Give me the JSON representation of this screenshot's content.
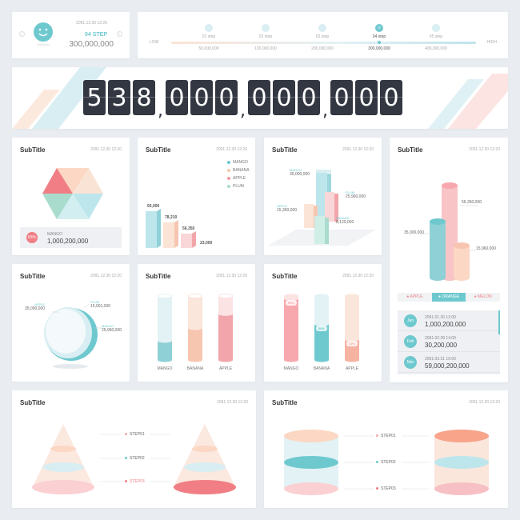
{
  "status_card": {
    "date": "2091.12.30 12:20",
    "step": "04 STEP",
    "value": "300,000,000"
  },
  "step_bar": {
    "low": "LOW",
    "high": "HIGH",
    "steps": [
      {
        "label": "01 step",
        "value": "50,000,000"
      },
      {
        "label": "02 step",
        "value": "100,000,000"
      },
      {
        "label": "03 step",
        "value": "200,000,000"
      },
      {
        "label": "04 step",
        "value": "300,000,000"
      },
      {
        "label": "05 step",
        "value": "400,000,000"
      }
    ],
    "active_index": 3
  },
  "counter": {
    "digits": [
      "5",
      "3",
      "8",
      "0",
      "0",
      "0",
      "0",
      "0",
      "0",
      "0",
      "0",
      "0"
    ]
  },
  "cards": {
    "c1": {
      "title": "SubTitle",
      "date": "2091.12.30 12:20",
      "badge": "65%",
      "label": "MANGO",
      "value": "1,000,200,000"
    },
    "c2": {
      "title": "SubTitle",
      "date": "2091.12.30 12:20"
    },
    "c3": {
      "title": "SubTitle",
      "date": "2091.12.30 12:20"
    },
    "c4": {
      "title": "SubTitle",
      "date": "2091.12.30 12:20"
    },
    "c5": {
      "title": "SubTitle",
      "date": "2091.12.30 12:20"
    },
    "c6": {
      "title": "SubTitle",
      "date": "2091.12.30 12:20"
    },
    "c7": {
      "title": "SubTitle",
      "date": "2091.12.30 12:20"
    },
    "c8": {
      "title": "SubTitle",
      "date": "2091.12.30 12:20"
    },
    "c9": {
      "title": "SubTitle",
      "date": "2091.12.30 12:20"
    }
  },
  "legend4": [
    {
      "name": "MANGO",
      "color": "#6ec9cf"
    },
    {
      "name": "BANANA",
      "color": "#f7c6b1"
    },
    {
      "name": "APPLE",
      "color": "#f29aa2"
    },
    {
      "name": "PLUM",
      "color": "#a9dccd"
    }
  ],
  "bar2_values": [
    "93,000",
    "78,210",
    "56,350",
    "23,000"
  ],
  "bar3": {
    "labels": [
      {
        "name": "MANGO",
        "value": "35,000,000"
      },
      {
        "name": "PLUM",
        "value": "25,960,000"
      },
      {
        "name": "APPLE",
        "value": "15,350,000"
      },
      {
        "name": "BANANA",
        "value": "8,120,000"
      }
    ]
  },
  "cyl3": {
    "values": [
      "56,350,000",
      "35,000,000",
      "15,960,000"
    ]
  },
  "tabs": {
    "items": [
      "APPLE",
      "ORANGE",
      "MELON"
    ],
    "active": 1
  },
  "list": [
    {
      "month": "Jan",
      "date": "2091.01.30 12:00",
      "value": "1,000,200,000"
    },
    {
      "month": "Feb",
      "date": "2091.02.28 14:00",
      "value": "30,200,000"
    },
    {
      "month": "Mar",
      "date": "2091.03.31 16:00",
      "value": "59,000,200,000"
    }
  ],
  "sphere": {
    "labels": [
      {
        "name": "APPLE",
        "value": "35,000,000"
      },
      {
        "name": "PLUM",
        "value": "15,001,000"
      },
      {
        "name": "MANGO",
        "value": "25,960,000"
      }
    ]
  },
  "tubes1": {
    "labels": [
      "MANGO",
      "BANANA",
      "APPLE"
    ],
    "fills": [
      0.3,
      0.5,
      0.72
    ]
  },
  "tubes2": {
    "labels": [
      "MANGO",
      "BANANA",
      "APPLE"
    ],
    "fills": [
      0.96,
      0.56,
      0.32
    ],
    "badges": [
      "96%",
      "56%",
      "32%"
    ]
  },
  "cone_steps": [
    "STEP01",
    "STEP02",
    "STEP03"
  ],
  "cyl_steps": [
    "STEP01",
    "STEP02",
    "STEP03"
  ]
}
